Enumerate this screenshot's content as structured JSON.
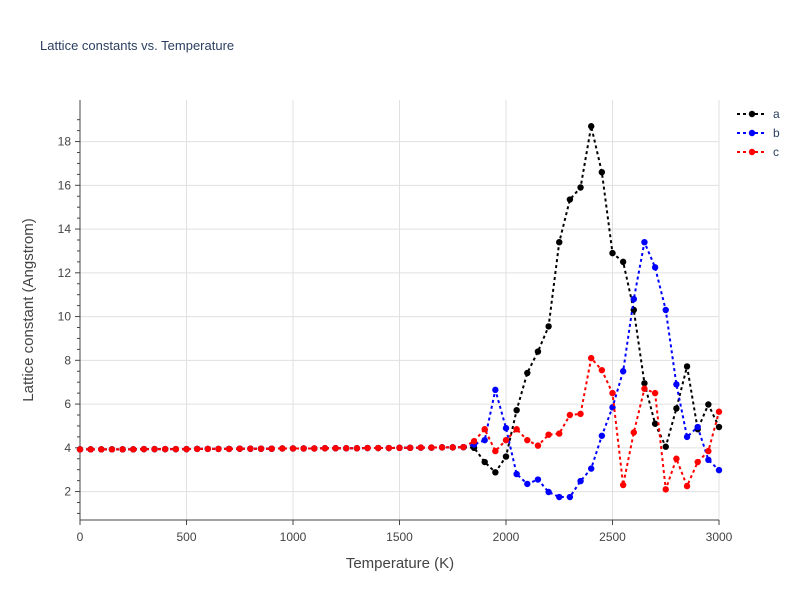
{
  "chart_data": {
    "type": "line",
    "title": "Lattice constants vs. Temperature",
    "xlabel": "Temperature (K)",
    "ylabel": "Lattice constant (Angstrom)",
    "xlim": [
      0,
      3000
    ],
    "ylim": [
      0.7,
      19.9
    ],
    "x_ticks": [
      0,
      500,
      1000,
      1500,
      2000,
      2500,
      3000
    ],
    "y_ticks": [
      2,
      4,
      6,
      8,
      10,
      12,
      14,
      16,
      18
    ],
    "grid": true,
    "legend_position": "top-right",
    "line_style": "dotted-with-markers",
    "x": [
      0,
      50,
      100,
      150,
      200,
      250,
      300,
      350,
      400,
      450,
      500,
      550,
      600,
      650,
      700,
      750,
      800,
      850,
      900,
      950,
      1000,
      1050,
      1100,
      1150,
      1200,
      1250,
      1300,
      1350,
      1400,
      1450,
      1500,
      1550,
      1600,
      1650,
      1700,
      1750,
      1800,
      1850,
      1900,
      1950,
      2000,
      2050,
      2100,
      2150,
      2200,
      2250,
      2300,
      2350,
      2400,
      2450,
      2500,
      2550,
      2600,
      2650,
      2700,
      2750,
      2800,
      2850,
      2900,
      2950,
      3000
    ],
    "series": [
      {
        "name": "a",
        "color": "#000000",
        "values": [
          3.93,
          3.93,
          3.93,
          3.93,
          3.93,
          3.93,
          3.94,
          3.94,
          3.94,
          3.94,
          3.94,
          3.95,
          3.95,
          3.95,
          3.95,
          3.96,
          3.96,
          3.96,
          3.96,
          3.97,
          3.97,
          3.97,
          3.97,
          3.98,
          3.98,
          3.98,
          3.98,
          3.99,
          3.99,
          3.99,
          4.0,
          4.0,
          4.01,
          4.01,
          4.02,
          4.02,
          4.03,
          4.0,
          3.35,
          2.88,
          3.6,
          5.72,
          7.42,
          8.4,
          9.55,
          13.4,
          15.35,
          15.9,
          18.7,
          16.6,
          12.9,
          12.5,
          10.3,
          6.95,
          5.1,
          4.05,
          5.8,
          7.72,
          4.85,
          5.98,
          4.95
        ]
      },
      {
        "name": "b",
        "color": "#0000ff",
        "values": [
          3.93,
          3.93,
          3.93,
          3.93,
          3.93,
          3.93,
          3.94,
          3.94,
          3.94,
          3.94,
          3.94,
          3.95,
          3.95,
          3.95,
          3.95,
          3.96,
          3.96,
          3.96,
          3.96,
          3.97,
          3.97,
          3.97,
          3.97,
          3.98,
          3.98,
          3.98,
          3.98,
          3.99,
          3.99,
          3.99,
          4.0,
          4.0,
          4.01,
          4.01,
          4.02,
          4.02,
          4.03,
          4.15,
          4.35,
          6.65,
          4.9,
          2.8,
          2.35,
          2.55,
          1.98,
          1.75,
          1.75,
          2.48,
          3.05,
          4.55,
          5.85,
          7.5,
          10.8,
          13.4,
          12.25,
          10.3,
          6.9,
          4.5,
          4.95,
          3.45,
          2.98
        ]
      },
      {
        "name": "c",
        "color": "#ff0000",
        "values": [
          3.93,
          3.93,
          3.93,
          3.93,
          3.93,
          3.93,
          3.94,
          3.94,
          3.94,
          3.94,
          3.94,
          3.95,
          3.95,
          3.95,
          3.95,
          3.96,
          3.96,
          3.96,
          3.96,
          3.97,
          3.97,
          3.97,
          3.97,
          3.98,
          3.98,
          3.98,
          3.98,
          3.99,
          3.99,
          3.99,
          4.0,
          4.0,
          4.01,
          4.01,
          4.02,
          4.02,
          4.03,
          4.3,
          4.85,
          3.85,
          4.35,
          4.85,
          4.35,
          4.1,
          4.6,
          4.65,
          5.5,
          5.55,
          8.1,
          7.55,
          6.5,
          2.3,
          4.7,
          6.7,
          6.5,
          2.1,
          3.5,
          2.25,
          3.35,
          3.85,
          5.65
        ]
      }
    ]
  }
}
